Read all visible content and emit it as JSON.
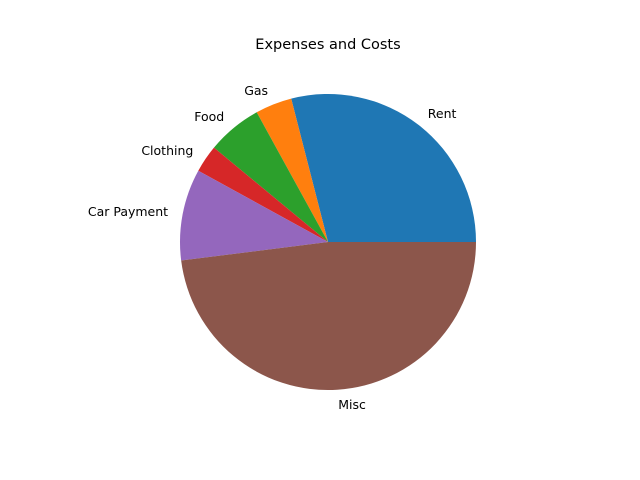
{
  "chart_data": {
    "type": "pie",
    "title": "Expenses and Costs",
    "labels": [
      "Rent",
      "Gas",
      "Food",
      "Clothing",
      "Car Payment",
      "Misc"
    ],
    "values": [
      29,
      4,
      6,
      3,
      10,
      48
    ],
    "start_angle_deg": 0,
    "direction": "counterclockwise",
    "colors": [
      "#1f77b4",
      "#ff7f0e",
      "#2ca02c",
      "#d62728",
      "#9467bd",
      "#8c564b"
    ],
    "legend": "none"
  }
}
